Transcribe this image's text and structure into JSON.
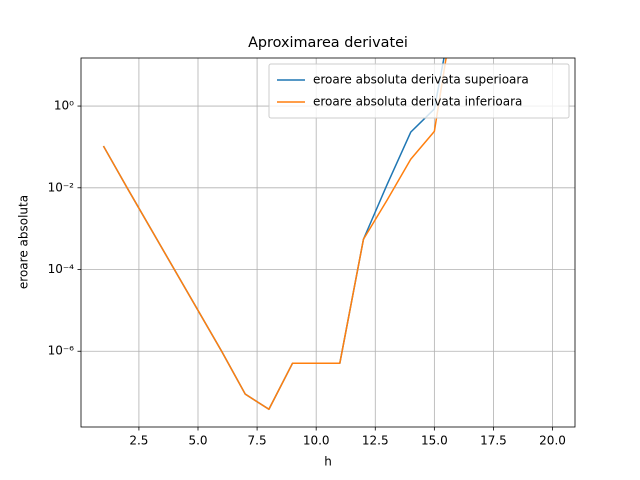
{
  "chart_data": {
    "type": "line",
    "title": "Aproximarea derivatei",
    "xlabel": "h",
    "ylabel": "eroare absoluta",
    "x": [
      1,
      2,
      3,
      4,
      5,
      6,
      7,
      8,
      9,
      10,
      11,
      12,
      13,
      14,
      15,
      16
    ],
    "series": [
      {
        "name": "eroare absoluta derivata superioara",
        "color": "#1f77b4",
        "values": [
          0.105,
          0.01,
          0.001,
          0.0001,
          1e-05,
          1e-06,
          8.9e-08,
          3.8e-08,
          5.1e-07,
          5.1e-07,
          5.1e-07,
          0.00055,
          0.012,
          0.23,
          0.85,
          1000
        ]
      },
      {
        "name": "eroare absoluta derivata inferioara",
        "color": "#ff7f0e",
        "values": [
          0.105,
          0.01,
          0.001,
          0.0001,
          1e-05,
          1e-06,
          8.9e-08,
          3.8e-08,
          5.1e-07,
          5.1e-07,
          5.1e-07,
          0.00055,
          0.005,
          0.05,
          0.24,
          1000
        ]
      }
    ],
    "xlim": [
      0.05,
      20.95
    ],
    "xticks": [
      2.5,
      {
        "value": 5,
        "label": "5.0"
      },
      7.5,
      {
        "value": 10,
        "label": "10.0"
      },
      12.5,
      {
        "value": 15,
        "label": "15.0"
      },
      17.5,
      {
        "value": 20,
        "label": "20.0"
      }
    ],
    "ylim": [
      1.4e-08,
      15
    ],
    "ylog": true,
    "yticks": [
      {
        "value": 1e-06,
        "label": "10⁻⁶"
      },
      {
        "value": 0.0001,
        "label": "10⁻⁴"
      },
      {
        "value": 0.01,
        "label": "10⁻²"
      },
      {
        "value": 1,
        "label": "10⁰"
      }
    ],
    "grid": true,
    "legend": "upper-right"
  }
}
